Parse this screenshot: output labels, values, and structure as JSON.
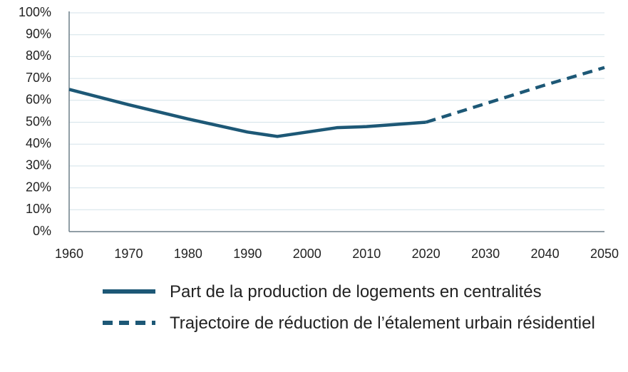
{
  "chart_data": {
    "type": "line",
    "x": [
      1960,
      1970,
      1980,
      1990,
      1995,
      2000,
      2005,
      2010,
      2020,
      2030,
      2040,
      2050
    ],
    "series": [
      {
        "name": "Part de la production de logements en centralités",
        "color": "#1d5876",
        "line_style": "solid",
        "values": [
          65,
          58,
          51.5,
          45.5,
          43.5,
          45.5,
          47.5,
          48,
          50,
          null,
          null,
          null
        ]
      },
      {
        "name": "Trajectoire de réduction de l’étalement urbain résidentiel",
        "color": "#1d5876",
        "line_style": "dashed",
        "values": [
          null,
          null,
          null,
          null,
          null,
          null,
          null,
          null,
          50,
          58.5,
          67,
          75
        ]
      }
    ],
    "xlim": [
      1960,
      2050
    ],
    "xticks": [
      1960,
      1970,
      1980,
      1990,
      2000,
      2010,
      2020,
      2030,
      2040,
      2050
    ],
    "ylim": [
      0,
      100
    ],
    "yticks": [
      {
        "value": 0,
        "label": "0%"
      },
      {
        "value": 10,
        "label": "10%"
      },
      {
        "value": 20,
        "label": "20%"
      },
      {
        "value": 30,
        "label": "30%"
      },
      {
        "value": 40,
        "label": "40%"
      },
      {
        "value": 50,
        "label": "50%"
      },
      {
        "value": 60,
        "label": "60%"
      },
      {
        "value": 70,
        "label": "70%"
      },
      {
        "value": 80,
        "label": "80%"
      },
      {
        "value": 90,
        "label": "90%"
      },
      {
        "value": 100,
        "label": "100%"
      }
    ],
    "grid": true
  }
}
